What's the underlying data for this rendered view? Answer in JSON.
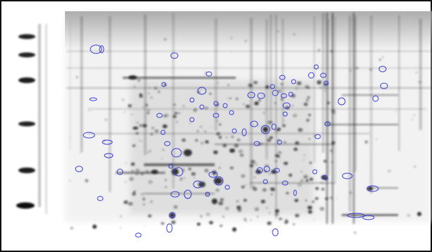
{
  "image": {
    "type": "2d-electrophoresis-gel",
    "background_color": "#ffffff",
    "stain_color": "#1a1a1a",
    "annotation_outline_color": "#3a3fd6",
    "marker_ladder": true,
    "annotated_spots_visible": true
  }
}
